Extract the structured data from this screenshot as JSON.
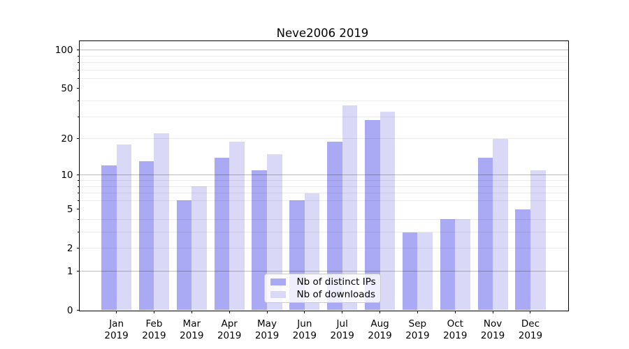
{
  "chart_data": {
    "type": "bar",
    "title": "Neve2006 2019",
    "categories": [
      "Jan 2019",
      "Feb 2019",
      "Mar 2019",
      "Apr 2019",
      "May 2019",
      "Jun 2019",
      "Jul 2019",
      "Aug 2019",
      "Sep 2019",
      "Oct 2019",
      "Nov 2019",
      "Dec 2019"
    ],
    "x_months": [
      "Jan",
      "Feb",
      "Mar",
      "Apr",
      "May",
      "Jun",
      "Jul",
      "Aug",
      "Sep",
      "Oct",
      "Nov",
      "Dec"
    ],
    "x_year": "2019",
    "series": [
      {
        "name": "Nb of distinct IPs",
        "color": "#a9a9f4",
        "values": [
          12,
          13,
          6,
          14,
          11,
          6,
          19,
          28,
          3,
          4,
          14,
          5
        ]
      },
      {
        "name": "Nb of downloads",
        "color": "#d9d9f7",
        "values": [
          18,
          22,
          8,
          19,
          15,
          7,
          37,
          33,
          3,
          4,
          20,
          11
        ]
      }
    ],
    "xlabel": "",
    "ylabel": "",
    "y_scale": "log1p",
    "y_ticks": [
      0,
      1,
      2,
      5,
      10,
      20,
      50,
      100
    ],
    "y_tick_labels": [
      "0",
      "1",
      "2",
      "5",
      "10",
      "20",
      "50",
      "100"
    ],
    "ylim": [
      0,
      118
    ],
    "grid": "on",
    "y_grid_major": [
      1,
      10,
      100
    ],
    "y_grid_minor": [
      2,
      3,
      4,
      6,
      7,
      8,
      9,
      20,
      30,
      40,
      60,
      70,
      80,
      90
    ],
    "legend": {
      "position": "lower center",
      "items": [
        {
          "label": "Nb of distinct IPs",
          "color": "#a9a9f4"
        },
        {
          "label": "Nb of downloads",
          "color": "#d9d9f7"
        }
      ]
    }
  }
}
